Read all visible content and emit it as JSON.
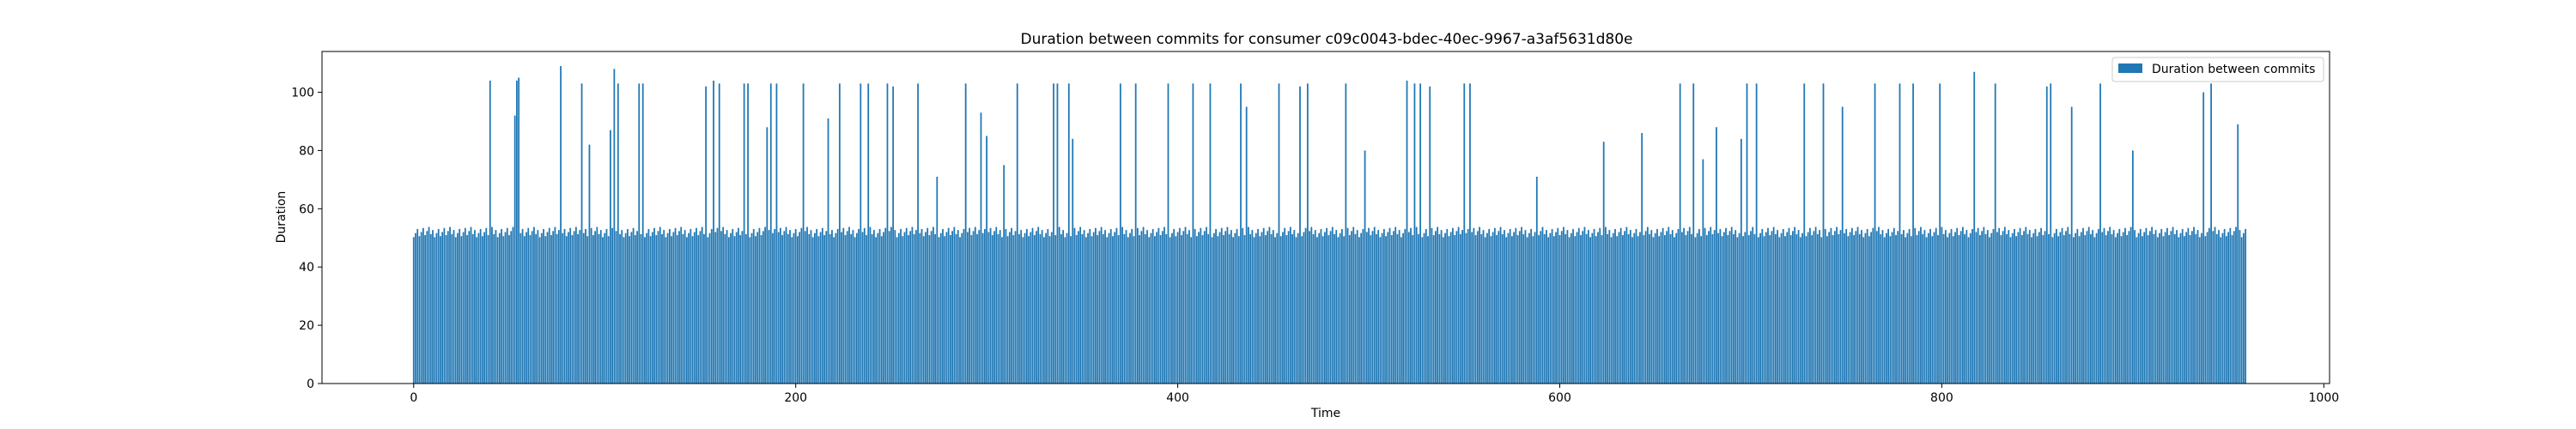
{
  "chart_data": {
    "type": "bar",
    "title": "Duration between commits for consumer c09c0043-bdec-40ec-9967-a3af5631d80e",
    "xlabel": "Time",
    "ylabel": "Duration",
    "xlim": [
      -48,
      1003
    ],
    "ylim": [
      0,
      114
    ],
    "xticks": [
      0,
      200,
      400,
      600,
      800,
      1000
    ],
    "yticks": [
      0,
      20,
      40,
      60,
      80,
      100
    ],
    "legend": {
      "position": "top-right",
      "entries": [
        "Duration between commits"
      ]
    },
    "grid": false,
    "series": [
      {
        "name": "Duration between commits",
        "color": "#1f77b4",
        "x_start": 0,
        "x_step": 1,
        "count": 960,
        "baseline": 52,
        "spikes": [
          {
            "x": 40,
            "y": 104
          },
          {
            "x": 53,
            "y": 92
          },
          {
            "x": 54,
            "y": 104
          },
          {
            "x": 55,
            "y": 105
          },
          {
            "x": 77,
            "y": 109
          },
          {
            "x": 88,
            "y": 103
          },
          {
            "x": 92,
            "y": 82
          },
          {
            "x": 103,
            "y": 87
          },
          {
            "x": 105,
            "y": 108
          },
          {
            "x": 107,
            "y": 103
          },
          {
            "x": 118,
            "y": 103
          },
          {
            "x": 120,
            "y": 103
          },
          {
            "x": 153,
            "y": 102
          },
          {
            "x": 157,
            "y": 104
          },
          {
            "x": 160,
            "y": 103
          },
          {
            "x": 173,
            "y": 103
          },
          {
            "x": 175,
            "y": 103
          },
          {
            "x": 185,
            "y": 88
          },
          {
            "x": 187,
            "y": 103
          },
          {
            "x": 190,
            "y": 103
          },
          {
            "x": 204,
            "y": 103
          },
          {
            "x": 217,
            "y": 91
          },
          {
            "x": 223,
            "y": 103
          },
          {
            "x": 234,
            "y": 103
          },
          {
            "x": 238,
            "y": 103
          },
          {
            "x": 248,
            "y": 103
          },
          {
            "x": 251,
            "y": 102
          },
          {
            "x": 264,
            "y": 103
          },
          {
            "x": 274,
            "y": 71
          },
          {
            "x": 289,
            "y": 103
          },
          {
            "x": 297,
            "y": 93
          },
          {
            "x": 300,
            "y": 85
          },
          {
            "x": 309,
            "y": 75
          },
          {
            "x": 316,
            "y": 103
          },
          {
            "x": 335,
            "y": 103
          },
          {
            "x": 337,
            "y": 103
          },
          {
            "x": 343,
            "y": 103
          },
          {
            "x": 345,
            "y": 84
          },
          {
            "x": 370,
            "y": 103
          },
          {
            "x": 378,
            "y": 103
          },
          {
            "x": 395,
            "y": 103
          },
          {
            "x": 408,
            "y": 103
          },
          {
            "x": 417,
            "y": 103
          },
          {
            "x": 433,
            "y": 103
          },
          {
            "x": 436,
            "y": 95
          },
          {
            "x": 453,
            "y": 103
          },
          {
            "x": 464,
            "y": 102
          },
          {
            "x": 468,
            "y": 103
          },
          {
            "x": 488,
            "y": 103
          },
          {
            "x": 498,
            "y": 80
          },
          {
            "x": 520,
            "y": 104
          },
          {
            "x": 524,
            "y": 103
          },
          {
            "x": 527,
            "y": 103
          },
          {
            "x": 532,
            "y": 102
          },
          {
            "x": 550,
            "y": 103
          },
          {
            "x": 553,
            "y": 103
          },
          {
            "x": 588,
            "y": 71
          },
          {
            "x": 623,
            "y": 83
          },
          {
            "x": 643,
            "y": 86
          },
          {
            "x": 663,
            "y": 103
          },
          {
            "x": 670,
            "y": 103
          },
          {
            "x": 675,
            "y": 77
          },
          {
            "x": 682,
            "y": 88
          },
          {
            "x": 695,
            "y": 84
          },
          {
            "x": 698,
            "y": 103
          },
          {
            "x": 703,
            "y": 103
          },
          {
            "x": 728,
            "y": 103
          },
          {
            "x": 738,
            "y": 103
          },
          {
            "x": 748,
            "y": 95
          },
          {
            "x": 765,
            "y": 103
          },
          {
            "x": 778,
            "y": 103
          },
          {
            "x": 785,
            "y": 103
          },
          {
            "x": 799,
            "y": 103
          },
          {
            "x": 817,
            "y": 107
          },
          {
            "x": 828,
            "y": 103
          },
          {
            "x": 855,
            "y": 102
          },
          {
            "x": 857,
            "y": 103
          },
          {
            "x": 868,
            "y": 95
          },
          {
            "x": 883,
            "y": 103
          },
          {
            "x": 900,
            "y": 80
          },
          {
            "x": 937,
            "y": 100
          },
          {
            "x": 941,
            "y": 103
          },
          {
            "x": 955,
            "y": 89
          }
        ]
      }
    ]
  }
}
